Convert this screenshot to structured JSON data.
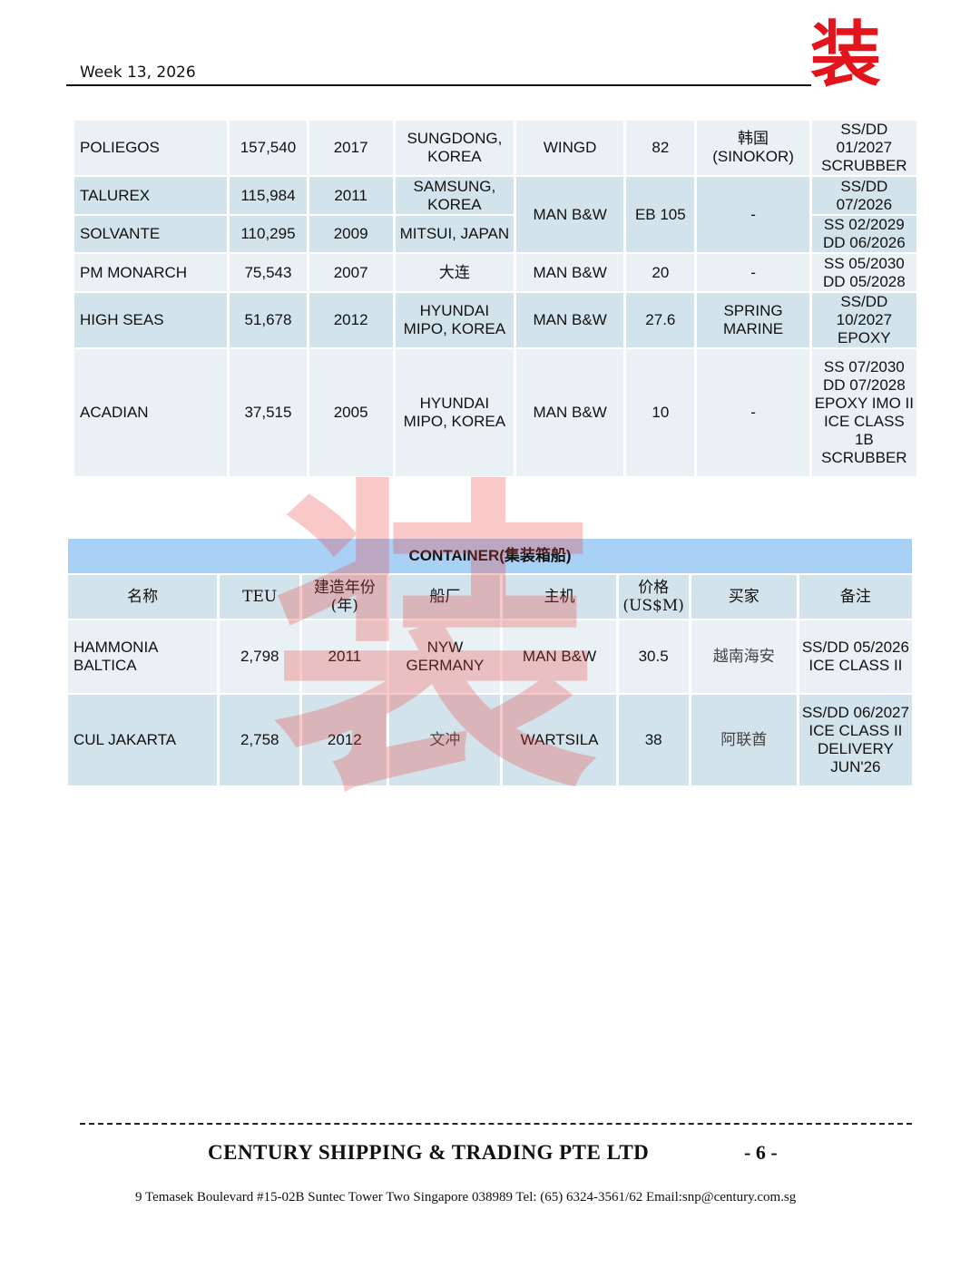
{
  "header": {
    "week": "Week 13, 2026",
    "logo_text": "装",
    "accent_color": "#e3141b"
  },
  "tanker_rows": [
    {
      "name": "POLIEGOS",
      "dwt": "157,540",
      "built": "2017",
      "yard": "SUNGDONG, KOREA",
      "engine": "WINGD",
      "price": "82",
      "buyer": "韩国 (SINOKOR)",
      "remarks": "SS/DD 01/2027 SCRUBBER"
    },
    {
      "name": "TALUREX",
      "dwt": "115,984",
      "built": "2011",
      "yard": "SAMSUNG, KOREA",
      "engine": "MAN B&W",
      "price": "EB 105",
      "buyer": "-",
      "remarks": "SS/DD 07/2026"
    },
    {
      "name": "SOLVANTE",
      "dwt": "110,295",
      "built": "2009",
      "yard": "MITSUI, JAPAN",
      "remarks": "SS 02/2029 DD 06/2026"
    },
    {
      "name": "PM MONARCH",
      "dwt": "75,543",
      "built": "2007",
      "yard": "大连",
      "engine": "MAN B&W",
      "price": "20",
      "buyer": "-",
      "remarks": "SS 05/2030 DD 05/2028"
    },
    {
      "name": "HIGH SEAS",
      "dwt": "51,678",
      "built": "2012",
      "yard": "HYUNDAI MIPO, KOREA",
      "engine": "MAN B&W",
      "price": "27.6",
      "buyer": "SPRING MARINE",
      "remarks": "SS/DD 10/2027 EPOXY"
    },
    {
      "name": "ACADIAN",
      "dwt": "37,515",
      "built": "2005",
      "yard": "HYUNDAI MIPO, KOREA",
      "engine": "MAN B&W",
      "price": "10",
      "buyer": "-",
      "remarks": "SS 07/2030 DD 07/2028 EPOXY IMO II ICE CLASS 1B SCRUBBER"
    }
  ],
  "container": {
    "title": "CONTAINER(集装箱船)",
    "headers": [
      "名称",
      "TEU",
      "建造年份(年)",
      "船厂",
      "主机",
      "价格(US$M)",
      "买家",
      "备注"
    ],
    "rows": [
      [
        "HAMMONIA BALTICA",
        "2,798",
        "2011",
        "NYW GERMANY",
        "MAN B&W",
        "30.5",
        "越南海安",
        "SS/DD 05/2026 ICE CLASS II"
      ],
      [
        "CUL JAKARTA",
        "2,758",
        "2012",
        "文冲",
        "WARTSILA",
        "38",
        "阿联酋",
        "SS/DD 06/2027 ICE CLASS II DELIVERY JUN'26"
      ]
    ]
  },
  "footer": {
    "company": "CENTURY SHIPPING & TRADING PTE LTD",
    "page": "- 6 -",
    "address": "9 Temasek Boulevard #15-02B Suntec Tower Two Singapore 038989    Tel: (65) 6324-3561/62  Email:snp@century.com.sg"
  }
}
